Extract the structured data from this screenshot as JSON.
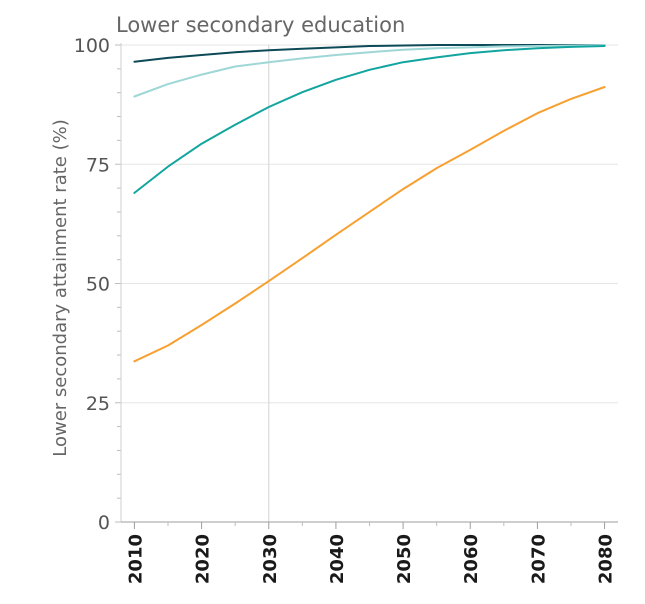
{
  "chart_data": {
    "type": "line",
    "title": "Lower secondary education",
    "xlabel": "",
    "ylabel": "Lower secondary attainment rate (%)",
    "xlim": [
      2008,
      2082
    ],
    "ylim": [
      0,
      100
    ],
    "x_ticks": [
      "2010",
      "2020",
      "2030",
      "2040",
      "2050",
      "2060",
      "2070",
      "2080"
    ],
    "y_ticks": [
      "0",
      "25",
      "50",
      "75",
      "100"
    ],
    "grid": true,
    "reference_line_x": 2030,
    "series": [
      {
        "color": "#0d4a57",
        "x": [
          2010,
          2015,
          2020,
          2025,
          2030,
          2035,
          2040,
          2045,
          2050,
          2055,
          2060,
          2065,
          2070,
          2075,
          2080
        ],
        "values": [
          96.5,
          97.3,
          97.9,
          98.5,
          98.9,
          99.2,
          99.5,
          99.8,
          99.9,
          100,
          100,
          100,
          100,
          100,
          100
        ]
      },
      {
        "color": "#9fd6d6",
        "x": [
          2010,
          2015,
          2020,
          2025,
          2030,
          2035,
          2040,
          2045,
          2050,
          2055,
          2060,
          2065,
          2070,
          2075,
          2080
        ],
        "values": [
          89.2,
          91.8,
          93.8,
          95.5,
          96.4,
          97.2,
          97.9,
          98.5,
          99.0,
          99.3,
          99.5,
          99.7,
          99.8,
          99.9,
          100
        ]
      },
      {
        "color": "#12a5a0",
        "x": [
          2010,
          2015,
          2020,
          2025,
          2030,
          2035,
          2040,
          2045,
          2050,
          2055,
          2060,
          2065,
          2070,
          2075,
          2080
        ],
        "values": [
          69.0,
          74.5,
          79.3,
          83.3,
          87.0,
          90.1,
          92.7,
          94.8,
          96.4,
          97.4,
          98.3,
          98.9,
          99.3,
          99.6,
          99.8
        ]
      },
      {
        "color": "#f7a030",
        "x": [
          2010,
          2015,
          2020,
          2025,
          2030,
          2035,
          2040,
          2045,
          2050,
          2055,
          2060,
          2065,
          2070,
          2075,
          2080
        ],
        "values": [
          33.7,
          37.0,
          41.3,
          45.8,
          50.5,
          55.3,
          60.2,
          65.0,
          69.8,
          74.2,
          78.0,
          82.0,
          85.7,
          88.7,
          91.2
        ]
      }
    ]
  }
}
